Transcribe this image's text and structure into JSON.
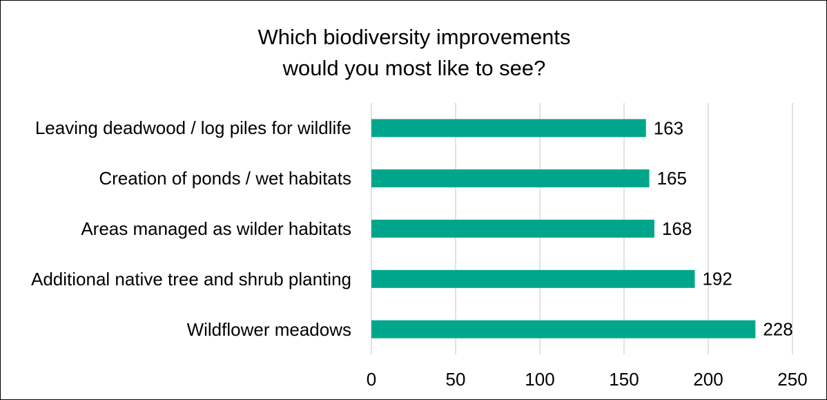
{
  "chart_data": {
    "type": "bar",
    "orientation": "horizontal",
    "title": "Which biodiversity improvements would you most like to see?",
    "categories": [
      "Leaving deadwood / log piles for wildlife",
      "Creation of ponds / wet habitats",
      "Areas managed as wilder habitats",
      "Additional native tree and shrub planting",
      "Wildflower meadows"
    ],
    "values": [
      163,
      165,
      168,
      192,
      228
    ],
    "color": "#00a68b",
    "xlim": [
      0,
      250
    ],
    "xticks": [
      0,
      50,
      100,
      150,
      200,
      250
    ],
    "grid": true
  }
}
